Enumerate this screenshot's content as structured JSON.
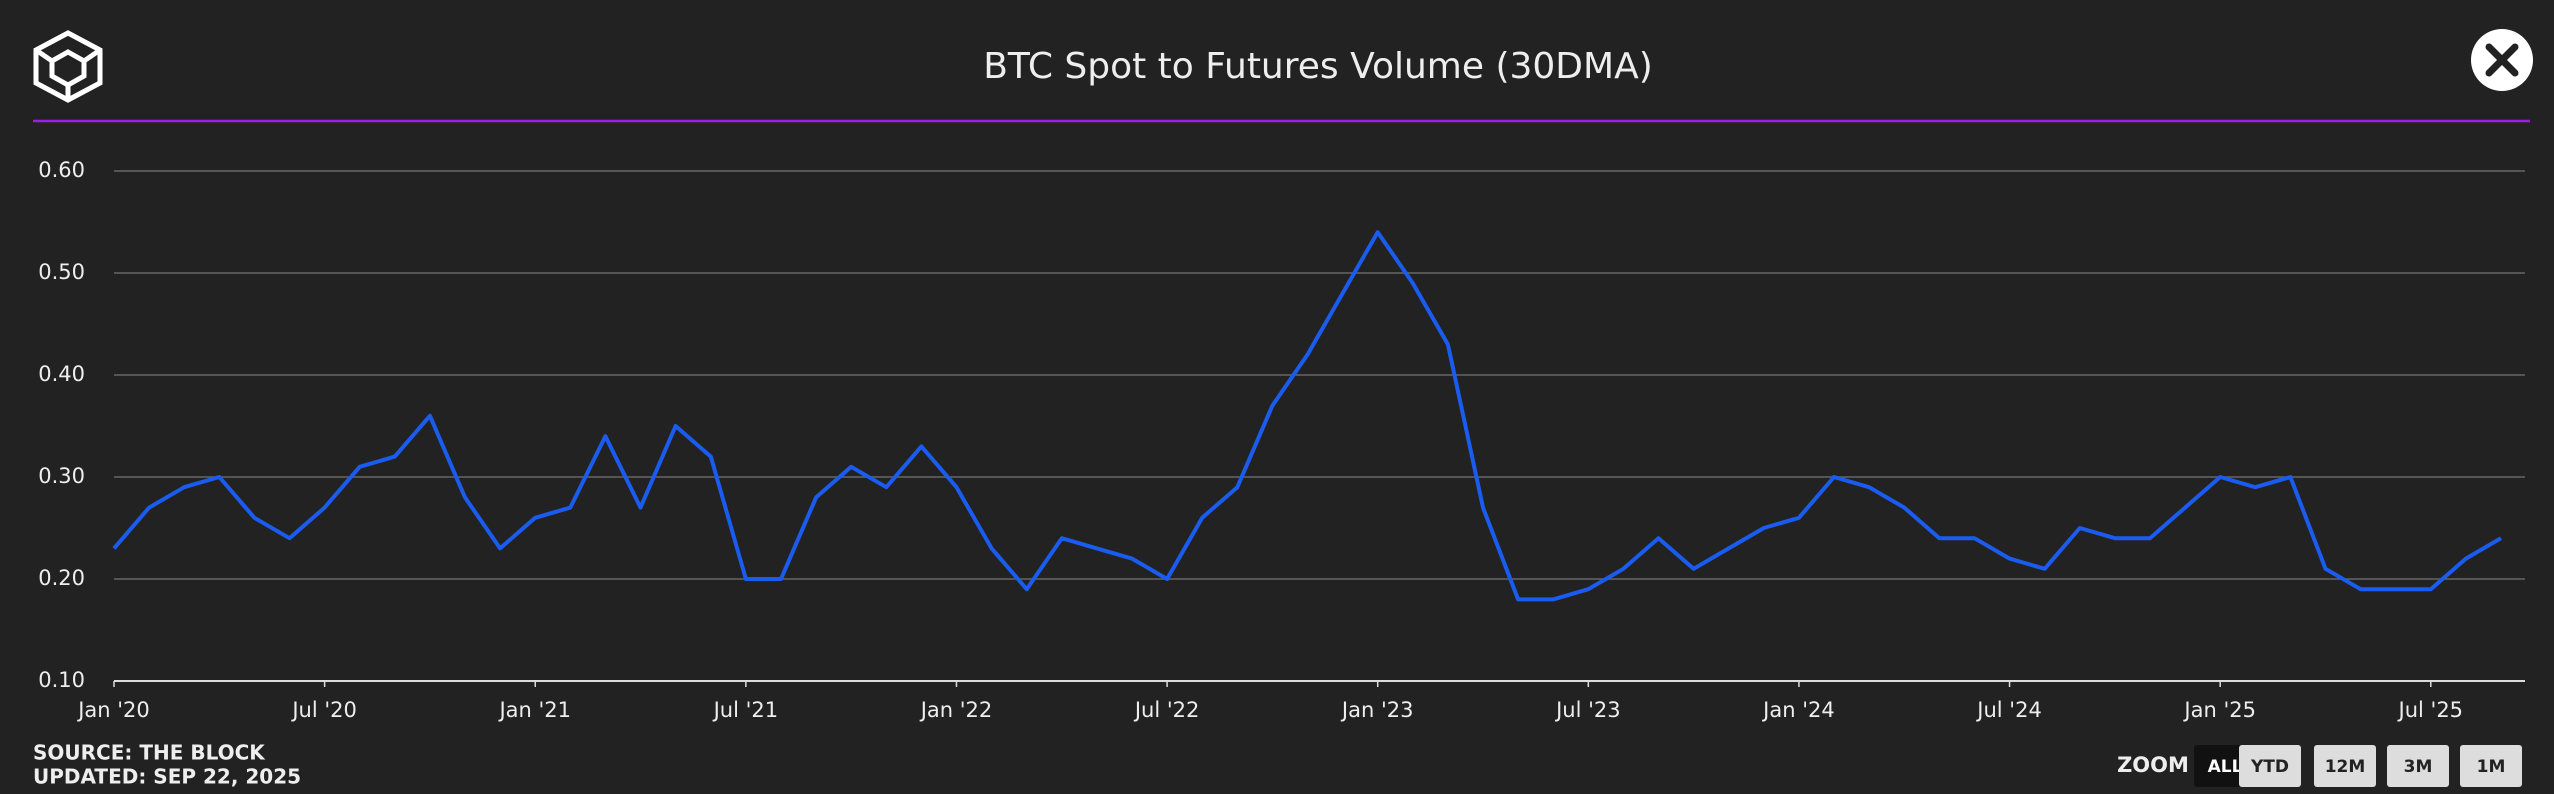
{
  "chart_data": {
    "type": "line",
    "title": "BTC Spot to Futures Volume (30DMA)",
    "x": [
      "2020-01",
      "2020-02",
      "2020-03",
      "2020-04",
      "2020-05",
      "2020-06",
      "2020-07",
      "2020-08",
      "2020-09",
      "2020-10",
      "2020-11",
      "2020-12",
      "2021-01",
      "2021-02",
      "2021-03",
      "2021-04",
      "2021-05",
      "2021-06",
      "2021-07",
      "2021-08",
      "2021-09",
      "2021-10",
      "2021-11",
      "2021-12",
      "2022-01",
      "2022-02",
      "2022-03",
      "2022-04",
      "2022-05",
      "2022-06",
      "2022-07",
      "2022-08",
      "2022-09",
      "2022-10",
      "2022-11",
      "2022-12",
      "2023-01",
      "2023-02",
      "2023-03",
      "2023-04",
      "2023-05",
      "2023-06",
      "2023-07",
      "2023-08",
      "2023-09",
      "2023-10",
      "2023-11",
      "2023-12",
      "2024-01",
      "2024-02",
      "2024-03",
      "2024-04",
      "2024-05",
      "2024-06",
      "2024-07",
      "2024-08",
      "2024-09",
      "2024-10",
      "2024-11",
      "2024-12",
      "2025-01",
      "2025-02",
      "2025-03",
      "2025-04",
      "2025-05",
      "2025-06",
      "2025-07",
      "2025-08",
      "2025-09"
    ],
    "values": [
      0.23,
      0.27,
      0.29,
      0.3,
      0.26,
      0.24,
      0.27,
      0.31,
      0.32,
      0.36,
      0.28,
      0.23,
      0.26,
      0.27,
      0.34,
      0.27,
      0.35,
      0.32,
      0.2,
      0.2,
      0.28,
      0.31,
      0.29,
      0.33,
      0.29,
      0.23,
      0.19,
      0.24,
      0.23,
      0.22,
      0.2,
      0.26,
      0.29,
      0.37,
      0.42,
      0.48,
      0.54,
      0.49,
      0.43,
      0.27,
      0.18,
      0.18,
      0.19,
      0.21,
      0.24,
      0.21,
      0.23,
      0.25,
      0.26,
      0.3,
      0.29,
      0.27,
      0.24,
      0.24,
      0.22,
      0.21,
      0.25,
      0.24,
      0.24,
      0.27,
      0.3,
      0.29,
      0.3,
      0.21,
      0.19,
      0.19,
      0.19,
      0.22,
      0.24
    ],
    "color": "#1a5cf0",
    "xlim": [
      "2020-01",
      "2025-09"
    ],
    "xticks": [
      {
        "value": "2020-01",
        "label": "Jan '20"
      },
      {
        "value": "2020-07",
        "label": "Jul '20"
      },
      {
        "value": "2021-01",
        "label": "Jan '21"
      },
      {
        "value": "2021-07",
        "label": "Jul '21"
      },
      {
        "value": "2022-01",
        "label": "Jan '22"
      },
      {
        "value": "2022-07",
        "label": "Jul '22"
      },
      {
        "value": "2023-01",
        "label": "Jan '23"
      },
      {
        "value": "2023-07",
        "label": "Jul '23"
      },
      {
        "value": "2024-01",
        "label": "Jan '24"
      },
      {
        "value": "2024-07",
        "label": "Jul '24"
      },
      {
        "value": "2025-01",
        "label": "Jan '25"
      },
      {
        "value": "2025-07",
        "label": "Jul '25"
      }
    ],
    "ylim": [
      0.1,
      0.6
    ],
    "yticks": [
      {
        "value": 0.1,
        "label": "0.10"
      },
      {
        "value": 0.2,
        "label": "0.20"
      },
      {
        "value": 0.3,
        "label": "0.30"
      },
      {
        "value": 0.4,
        "label": "0.40"
      },
      {
        "value": 0.5,
        "label": "0.50"
      },
      {
        "value": 0.6,
        "label": "0.60"
      }
    ],
    "grid": true,
    "source": "SOURCE: THE BLOCK",
    "updated": "UPDATED: SEP 22, 2025",
    "zoom": {
      "label": "ZOOM",
      "options": [
        "ALL",
        "YTD",
        "12M",
        "3M",
        "1M"
      ]
    }
  }
}
